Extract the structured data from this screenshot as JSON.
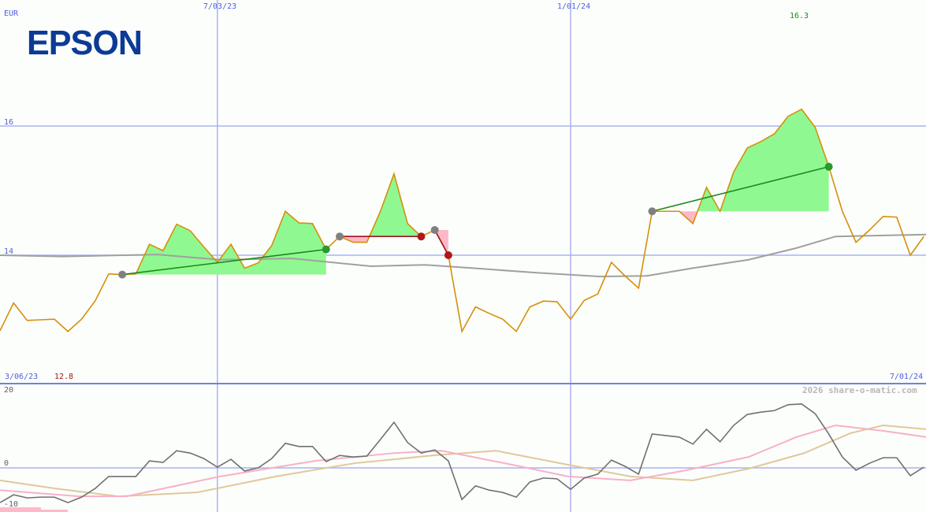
{
  "company": "EPSON",
  "currency": "EUR",
  "credit": "2026 share-o-matic.com",
  "colors": {
    "price": "#d4900a",
    "ma": "#a0a0a0",
    "grid": "#a8b2f4",
    "axis": "#6f7fe8",
    "win": "#90f890",
    "loss": "#ffb8c8",
    "win_line": "#1a8a1a",
    "loss_line": "#a01020",
    "osc": "#707070",
    "osc_pink": "#f8b0c8",
    "osc_tan": "#e0c898"
  },
  "chart_data": [
    {
      "type": "line",
      "ylim": [
        12.0,
        17.97
      ],
      "y_ticks": [
        {
          "label": "16",
          "value": 16
        },
        {
          "label": "14",
          "value": 14
        }
      ],
      "x_ticks": [
        {
          "label": "7/03/23",
          "index": 16
        },
        {
          "label": "1/01/24",
          "index": 42
        }
      ],
      "x_start_label": "3/06/23",
      "x_end_label": "7/01/24",
      "low_label": "12.8",
      "high_label": "16.3",
      "grid": true,
      "price": [
        12.83,
        13.26,
        12.99,
        13.0,
        13.01,
        12.82,
        13.01,
        13.29,
        13.71,
        13.7,
        13.71,
        14.17,
        14.07,
        14.48,
        14.38,
        14.13,
        13.89,
        14.17,
        13.8,
        13.88,
        14.15,
        14.68,
        14.5,
        14.49,
        14.09,
        14.29,
        14.2,
        14.2,
        14.68,
        15.26,
        14.49,
        14.29,
        14.39,
        14.0,
        12.82,
        13.2,
        13.1,
        13.01,
        12.82,
        13.2,
        13.29,
        13.28,
        13.01,
        13.3,
        13.4,
        13.89,
        13.68,
        13.49,
        14.68,
        14.68,
        14.68,
        14.49,
        15.05,
        14.68,
        15.29,
        15.66,
        15.76,
        15.88,
        16.15,
        16.26,
        15.98,
        15.37,
        14.68,
        14.2,
        14.39,
        14.6,
        14.59,
        14.0,
        14.29
      ],
      "moving_average": [
        [
          0,
          14.0
        ],
        [
          4.6,
          13.98
        ],
        [
          11.6,
          14.01
        ],
        [
          16.2,
          13.93
        ],
        [
          21.5,
          13.95
        ],
        [
          27.3,
          13.83
        ],
        [
          31.3,
          13.85
        ],
        [
          34.8,
          13.8
        ],
        [
          39.4,
          13.73
        ],
        [
          44.1,
          13.67
        ],
        [
          47.6,
          13.68
        ],
        [
          51,
          13.8
        ],
        [
          55.1,
          13.93
        ],
        [
          58.6,
          14.11
        ],
        [
          61.5,
          14.29
        ],
        [
          68.2,
          14.32
        ]
      ],
      "trades": [
        {
          "entry_index": 9,
          "exit_index": 24,
          "result": "win"
        },
        {
          "entry_index": 25,
          "exit_index": 31,
          "result": "loss"
        },
        {
          "entry_index": 32,
          "exit_index": 33,
          "result": "loss"
        },
        {
          "entry_index": 48,
          "exit_index": 61,
          "result": "win"
        }
      ]
    },
    {
      "type": "line",
      "ylim": [
        -11.2,
        21.8
      ],
      "y_ticks": [
        {
          "label": "20",
          "value": 20
        },
        {
          "label": "0",
          "value": 0
        },
        {
          "label": "-10",
          "value": -10
        }
      ],
      "series": [
        {
          "values": [
            -8.9,
            -6.9,
            -7.7,
            -7.5,
            -7.5,
            -8.9,
            -7.5,
            -5.3,
            -2.2,
            -2.2,
            -2.2,
            1.8,
            1.4,
            4.4,
            3.8,
            2.4,
            0.2,
            2.2,
            -0.8,
            0,
            2.4,
            6.3,
            5.5,
            5.5,
            1.6,
            3.2,
            2.8,
            3.0,
            7.3,
            11.7,
            6.5,
            3.8,
            4.6,
            1.8,
            -8.1,
            -4.6,
            -5.7,
            -6.3,
            -7.5,
            -3.6,
            -2.6,
            -2.8,
            -5.5,
            -2.6,
            -1.6,
            2.0,
            0.4,
            -1.6,
            8.7,
            8.3,
            7.9,
            6.1,
            9.9,
            6.7,
            10.9,
            13.7,
            14.3,
            14.7,
            16.2,
            16.4,
            13.9,
            8.7,
            2.8,
            -0.6,
            1.2,
            2.6,
            2.6,
            -2.0,
            0.2
          ]
        },
        {
          "points": [
            [
              0,
              -5.7
            ],
            [
              5.8,
              -7.3
            ],
            [
              9.3,
              -7.3
            ],
            [
              16.2,
              -2.2
            ],
            [
              23.2,
              1.8
            ],
            [
              29,
              3.8
            ],
            [
              32.5,
              4.4
            ],
            [
              37.7,
              0.8
            ],
            [
              41.8,
              -2.2
            ],
            [
              46.4,
              -3.2
            ],
            [
              50.5,
              -0.6
            ],
            [
              55.1,
              2.8
            ],
            [
              58.6,
              7.9
            ],
            [
              61.5,
              10.9
            ],
            [
              65,
              9.5
            ],
            [
              68.2,
              7.9
            ]
          ]
        },
        {
          "points": [
            [
              0,
              -3.2
            ],
            [
              4.1,
              -5.3
            ],
            [
              8.7,
              -7.3
            ],
            [
              14.5,
              -6.3
            ],
            [
              20.3,
              -2.2
            ],
            [
              26.1,
              1.2
            ],
            [
              31.9,
              3.2
            ],
            [
              36.5,
              4.4
            ],
            [
              41.8,
              0.8
            ],
            [
              46.4,
              -2.2
            ],
            [
              51,
              -3.2
            ],
            [
              55.1,
              -0.2
            ],
            [
              59.2,
              3.8
            ],
            [
              62.6,
              8.9
            ],
            [
              65,
              10.9
            ],
            [
              68.2,
              9.9
            ]
          ]
        }
      ]
    }
  ]
}
